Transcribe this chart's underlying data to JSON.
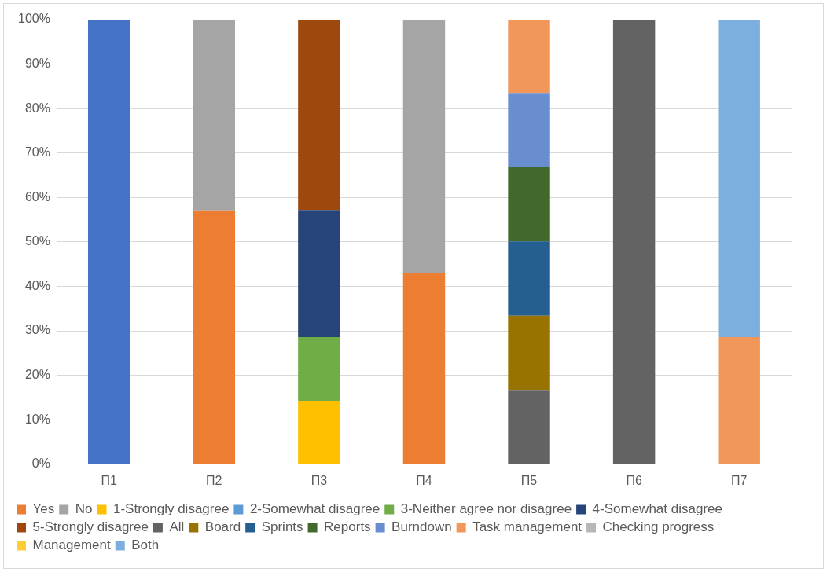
{
  "chart_data": {
    "type": "bar",
    "stacked": true,
    "categories": [
      "П1",
      "П2",
      "П3",
      "П4",
      "П5",
      "П6",
      "П7"
    ],
    "series": [
      {
        "color": "#4472c4",
        "values": [
          100,
          null,
          null,
          null,
          null,
          null,
          null
        ]
      },
      {
        "name": "Yes",
        "color": "#ed7d31",
        "values": [
          null,
          57.1,
          null,
          42.9,
          null,
          null,
          null
        ]
      },
      {
        "name": "No",
        "color": "#a5a5a5",
        "values": [
          null,
          42.9,
          null,
          57.1,
          null,
          null,
          null
        ]
      },
      {
        "name": "1-Strongly disagree",
        "color": "#ffc000",
        "values": [
          null,
          null,
          14.3,
          null,
          null,
          null,
          null
        ]
      },
      {
        "name": "2-Somewhat disagree",
        "color": "#5b9bd5",
        "values": [
          null,
          null,
          null,
          null,
          null,
          null,
          null
        ]
      },
      {
        "name": "3-Neither agree nor disagree",
        "color": "#70ad47",
        "values": [
          null,
          null,
          14.3,
          null,
          null,
          null,
          null
        ]
      },
      {
        "name": "4-Somewhat disagree",
        "color": "#264478",
        "values": [
          null,
          null,
          28.6,
          null,
          null,
          null,
          null
        ]
      },
      {
        "name": "5-Strongly disagree",
        "color": "#9e480e",
        "values": [
          null,
          null,
          42.9,
          null,
          null,
          null,
          null
        ]
      },
      {
        "name": "All",
        "color": "#636363",
        "values": [
          null,
          null,
          null,
          null,
          16.7,
          100,
          null
        ]
      },
      {
        "name": "Board",
        "color": "#997300",
        "values": [
          null,
          null,
          null,
          null,
          16.7,
          null,
          null
        ]
      },
      {
        "name": "Sprints",
        "color": "#255e91",
        "values": [
          null,
          null,
          null,
          null,
          16.7,
          null,
          null
        ]
      },
      {
        "name": "Reports",
        "color": "#43682b",
        "values": [
          null,
          null,
          null,
          null,
          16.7,
          null,
          null
        ]
      },
      {
        "name": "Burndown",
        "color": "#698ed0",
        "values": [
          null,
          null,
          null,
          null,
          16.7,
          null,
          null
        ]
      },
      {
        "name": "Task management",
        "color": "#f1975a",
        "values": [
          null,
          null,
          null,
          null,
          16.5,
          null,
          28.6
        ]
      },
      {
        "name": "Checking progress",
        "color": "#b7b7b7",
        "values": [
          null,
          null,
          null,
          null,
          null,
          null,
          null
        ]
      },
      {
        "name": "Management",
        "color": "#ffcd33",
        "values": [
          null,
          null,
          null,
          null,
          null,
          null,
          null
        ]
      },
      {
        "name": "Both",
        "color": "#7cafdd",
        "values": [
          null,
          null,
          null,
          null,
          null,
          null,
          71.4
        ]
      }
    ],
    "ylim": [
      0,
      100
    ],
    "yticks": [
      {
        "value": 0,
        "label": "0%"
      },
      {
        "value": 10,
        "label": "10%"
      },
      {
        "value": 20,
        "label": "20%"
      },
      {
        "value": 30,
        "label": "30%"
      },
      {
        "value": 40,
        "label": "40%"
      },
      {
        "value": 50,
        "label": "50%"
      },
      {
        "value": 60,
        "label": "60%"
      },
      {
        "value": 70,
        "label": "70%"
      },
      {
        "value": 80,
        "label": "80%"
      },
      {
        "value": 90,
        "label": "90%"
      },
      {
        "value": 100,
        "label": "100%"
      }
    ],
    "grid": "y",
    "legend": "bottom"
  }
}
